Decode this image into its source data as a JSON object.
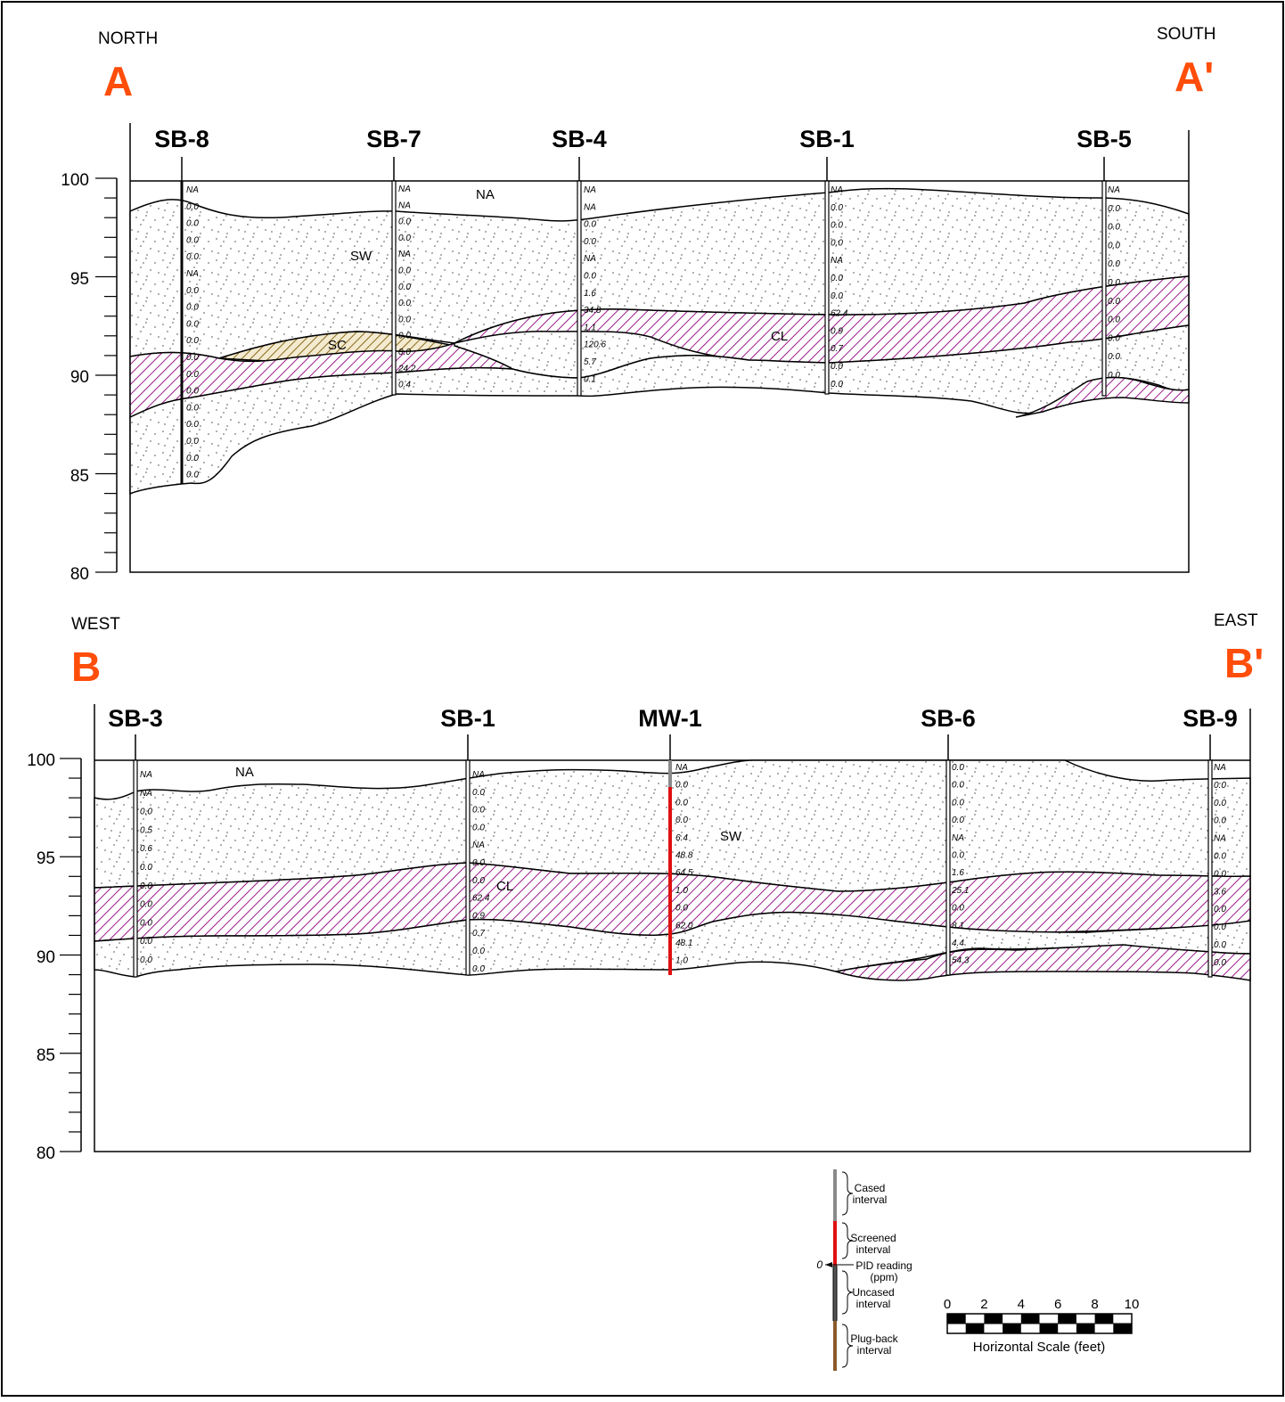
{
  "sections": [
    {
      "id": "A",
      "dir_left": "NORTH",
      "dir_right": "SOUTH",
      "label_left": "A",
      "label_right": "A'",
      "y_ticks": [
        "100",
        "95",
        "90",
        "85",
        "80"
      ],
      "na_label": "NA",
      "soil_labels": [
        "SW",
        "SC",
        "CL"
      ],
      "borings": [
        {
          "name": "SB-8",
          "pid": [
            "NA",
            "0.0",
            "0.0",
            "0.0",
            "0.0",
            "NA",
            "0.0",
            "0.0",
            "0.0",
            "0.0",
            "0.0",
            "0.0",
            "0.0",
            "0.0",
            "0.0",
            "0.0",
            "0.0",
            "0.0"
          ]
        },
        {
          "name": "SB-7",
          "pid": [
            "NA",
            "NA",
            "0.0",
            "0.0",
            "NA",
            "0.0",
            "0.0",
            "0.0",
            "0.0",
            "0.0",
            "0.0",
            "24.2",
            "0.4"
          ]
        },
        {
          "name": "SB-4",
          "pid": [
            "NA",
            "NA",
            "0.0",
            "0.0",
            "NA",
            "0.0",
            "1.6",
            "34.8",
            "1.1",
            "120.6",
            "5.7",
            "0.1"
          ]
        },
        {
          "name": "SB-1",
          "pid": [
            "NA",
            "0.0",
            "0.0",
            "0.0",
            "NA",
            "0.0",
            "0.0",
            "62.4",
            "0.9",
            "0.7",
            "0.0",
            "0.0"
          ]
        },
        {
          "name": "SB-5",
          "pid": [
            "NA",
            "0.0",
            "0.0",
            "0.0",
            "0.0",
            "0.0",
            "0.0",
            "0.0",
            "0.0",
            "0.0",
            "0.0"
          ]
        }
      ]
    },
    {
      "id": "B",
      "dir_left": "WEST",
      "dir_right": "EAST",
      "label_left": "B",
      "label_right": "B'",
      "y_ticks": [
        "100",
        "95",
        "90",
        "85",
        "80"
      ],
      "na_label": "NA",
      "soil_labels": [
        "SW",
        "CL"
      ],
      "borings": [
        {
          "name": "SB-3",
          "pid": [
            "NA",
            "NA",
            "0.0",
            "0.5",
            "0.6",
            "0.0",
            "0.0",
            "0.0",
            "0.0",
            "0.0",
            "0.0"
          ]
        },
        {
          "name": "SB-1",
          "pid": [
            "NA",
            "0.0",
            "0.0",
            "0.0",
            "NA",
            "0.0",
            "0.0",
            "62.4",
            "0.9",
            "0.7",
            "0.0",
            "0.0"
          ]
        },
        {
          "name": "MW-1",
          "pid": [
            "NA",
            "0.0",
            "0.0",
            "0.0",
            "6.4",
            "48.8",
            "64.5",
            "1.0",
            "0.0",
            "62.0",
            "48.1",
            "1.0"
          ]
        },
        {
          "name": "SB-6",
          "pid": [
            "0.0",
            "0.0",
            "0.0",
            "0.0",
            "NA",
            "0.0",
            "1.6",
            "25.1",
            "0.0",
            "8.1",
            "4.4",
            "54.3"
          ]
        },
        {
          "name": "SB-9",
          "pid": [
            "NA",
            "0.0",
            "0.0",
            "0.0",
            "NA",
            "0.0",
            "0.0",
            "3.6",
            "0.0",
            "0.0",
            "0.0",
            "0.0"
          ]
        }
      ]
    }
  ],
  "legend": {
    "cased": "Cased\ninterval",
    "screened": "Screened\ninterval",
    "pid": "PID reading\n(ppm)",
    "pid_zero": "0",
    "uncased": "Uncased\ninterval",
    "plugback": "Plug-back\ninterval"
  },
  "scale": {
    "ticks": [
      "0",
      "2",
      "4",
      "6",
      "8",
      "10"
    ],
    "title": "Horizontal Scale (feet)"
  },
  "colors": {
    "section_label": "#ff4d0a",
    "clay_hatch": "#9b1c8c",
    "sc_hatch": "#8a6a1a",
    "screen": "#e01010",
    "casing": "#8a8a8a",
    "plugback": "#8b5a2b"
  }
}
